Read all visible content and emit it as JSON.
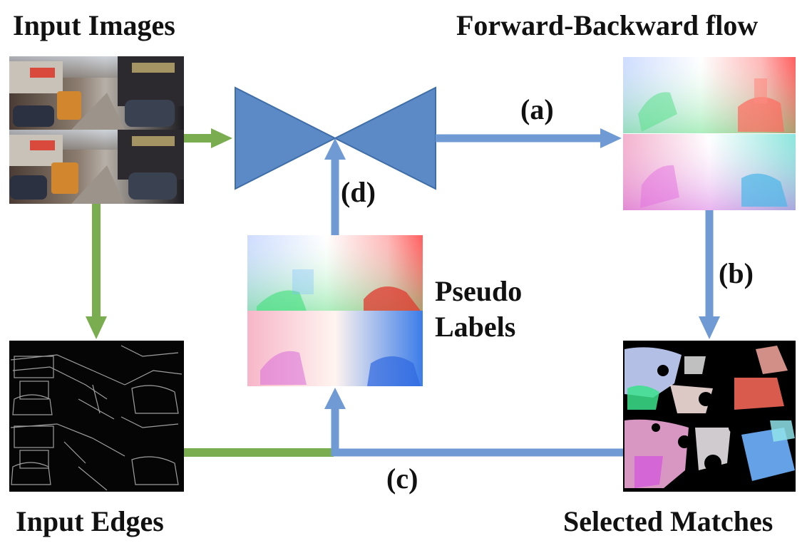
{
  "titles": {
    "input_images": "Input Images",
    "forward_backward_flow": "Forward-Backward flow",
    "input_edges": "Input Edges",
    "selected_matches": "Selected Matches"
  },
  "pseudo_labels": {
    "line1": "Pseudo",
    "line2": "Labels"
  },
  "steps": {
    "a": "(a)",
    "b": "(b)",
    "c": "(c)",
    "d": "(d)"
  },
  "colors": {
    "blue_arrow": "#6f9ad3",
    "green_arrow": "#7aad4f",
    "network": "#5b8ac6",
    "network_stroke": "#3f6ea8"
  }
}
